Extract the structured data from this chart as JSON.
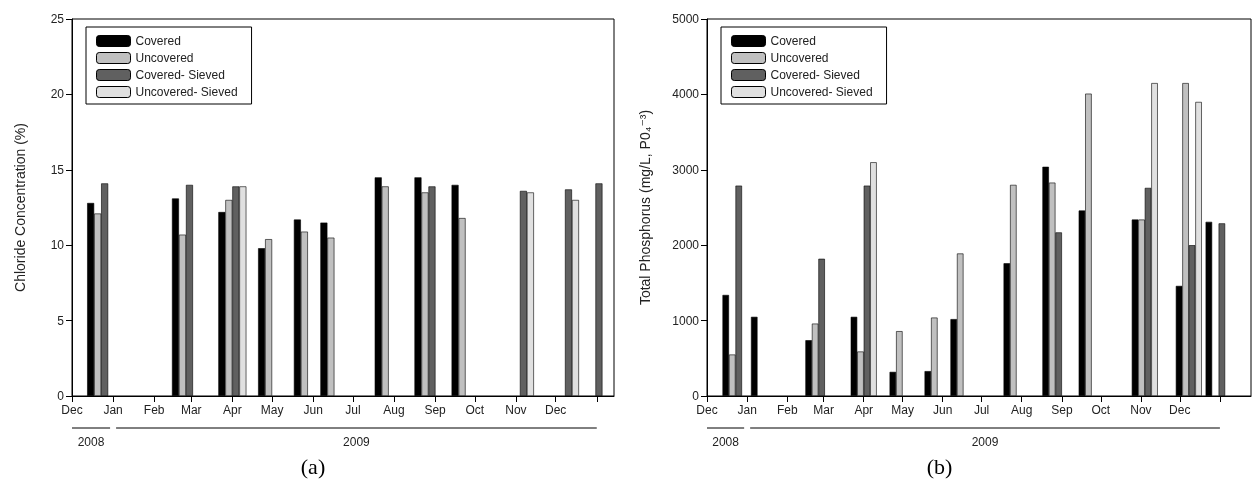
{
  "chart_data": [
    {
      "type": "bar",
      "title": "(a)",
      "ylabel": "Chloride Concentration (%)",
      "x": [
        "2008-12-23",
        "2009-02-25",
        "2009-04-01",
        "2009-05-01",
        "2009-05-28",
        "2009-06-17",
        "2009-07-28",
        "2009-08-27",
        "2009-09-24",
        "2009-11-04",
        "2009-12-08",
        "2009-12-31"
      ],
      "series": [
        {
          "name": "Covered",
          "color": "#000000",
          "values": [
            12.8,
            13.1,
            12.2,
            9.8,
            11.7,
            11.5,
            14.5,
            14.5,
            14.0,
            null,
            null,
            null
          ]
        },
        {
          "name": "Uncovered",
          "color": "#c0c0c0",
          "values": [
            12.1,
            10.7,
            13.0,
            10.4,
            10.9,
            10.5,
            13.9,
            13.5,
            11.8,
            null,
            null,
            null
          ]
        },
        {
          "name": "Covered- Sieved",
          "color": "#606060",
          "values": [
            14.1,
            14.0,
            13.9,
            null,
            null,
            null,
            null,
            13.9,
            null,
            13.6,
            13.7,
            14.1
          ]
        },
        {
          "name": "Uncovered- Sieved",
          "color": "#e0e0e0",
          "values": [
            null,
            null,
            13.9,
            null,
            null,
            null,
            null,
            null,
            null,
            13.5,
            13.0,
            null
          ]
        }
      ],
      "xlim": [
        "2008-12-01",
        "2010-01-14"
      ],
      "xticks": [
        {
          "value": "2008-12-01",
          "label": "Dec"
        },
        {
          "value": "2009-01-01",
          "label": "Jan"
        },
        {
          "value": "2009-02-01",
          "label": "Feb"
        },
        {
          "value": "2009-03-01",
          "label": "Mar"
        },
        {
          "value": "2009-04-01",
          "label": "Apr"
        },
        {
          "value": "2009-05-01",
          "label": "May"
        },
        {
          "value": "2009-06-01",
          "label": "Jun"
        },
        {
          "value": "2009-07-01",
          "label": "Jul"
        },
        {
          "value": "2009-08-01",
          "label": "Aug"
        },
        {
          "value": "2009-09-01",
          "label": "Sep"
        },
        {
          "value": "2009-10-01",
          "label": "Oct"
        },
        {
          "value": "2009-11-01",
          "label": "Nov"
        },
        {
          "value": "2009-12-01",
          "label": "Dec"
        },
        {
          "value": "2010-01-01",
          "label": null
        }
      ],
      "ylim": [
        0,
        25
      ],
      "yticks": [
        0,
        5,
        10,
        15,
        20,
        25
      ],
      "annotations": [
        "2008",
        "2009"
      ],
      "grid": false,
      "legend": "top left"
    },
    {
      "type": "bar",
      "title": "(b)",
      "ylabel": "Total Phosphorus (mg/L, P0₄⁻³)",
      "x": [
        "2008-12-23",
        "2009-01-14",
        "2009-02-25",
        "2009-04-01",
        "2009-05-01",
        "2009-05-28",
        "2009-06-17",
        "2009-07-28",
        "2009-08-27",
        "2009-09-24",
        "2009-11-04",
        "2009-12-08",
        "2009-12-31"
      ],
      "series": [
        {
          "name": "Covered",
          "color": "#000000",
          "values": [
            1340,
            1050,
            740,
            1050,
            320,
            330,
            1020,
            1760,
            3040,
            2460,
            2340,
            1460,
            2310
          ]
        },
        {
          "name": "Uncovered",
          "color": "#c0c0c0",
          "values": [
            550,
            null,
            960,
            590,
            860,
            1040,
            1890,
            2800,
            2830,
            4010,
            2340,
            4150,
            null
          ]
        },
        {
          "name": "Covered- Sieved",
          "color": "#606060",
          "values": [
            2790,
            null,
            1820,
            2790,
            null,
            null,
            null,
            null,
            2170,
            null,
            2760,
            2000,
            2290
          ]
        },
        {
          "name": "Uncovered- Sieved",
          "color": "#e0e0e0",
          "values": [
            null,
            null,
            null,
            3100,
            null,
            null,
            null,
            null,
            null,
            null,
            4150,
            3900,
            null
          ]
        }
      ],
      "xlim": [
        "2008-12-01",
        "2010-01-25"
      ],
      "xticks": [
        {
          "value": "2008-12-01",
          "label": "Dec"
        },
        {
          "value": "2009-01-01",
          "label": "Jan"
        },
        {
          "value": "2009-02-01",
          "label": "Feb"
        },
        {
          "value": "2009-03-01",
          "label": "Mar"
        },
        {
          "value": "2009-04-01",
          "label": "Apr"
        },
        {
          "value": "2009-05-01",
          "label": "May"
        },
        {
          "value": "2009-06-01",
          "label": "Jun"
        },
        {
          "value": "2009-07-01",
          "label": "Jul"
        },
        {
          "value": "2009-08-01",
          "label": "Aug"
        },
        {
          "value": "2009-09-01",
          "label": "Sep"
        },
        {
          "value": "2009-10-01",
          "label": "Oct"
        },
        {
          "value": "2009-11-01",
          "label": "Nov"
        },
        {
          "value": "2009-12-01",
          "label": "Dec"
        },
        {
          "value": "2010-01-01",
          "label": null
        }
      ],
      "ylim": [
        0,
        5000
      ],
      "yticks": [
        0,
        1000,
        2000,
        3000,
        4000,
        5000
      ],
      "annotations": [
        "2008",
        "2009"
      ],
      "grid": false,
      "legend": "top left"
    }
  ]
}
